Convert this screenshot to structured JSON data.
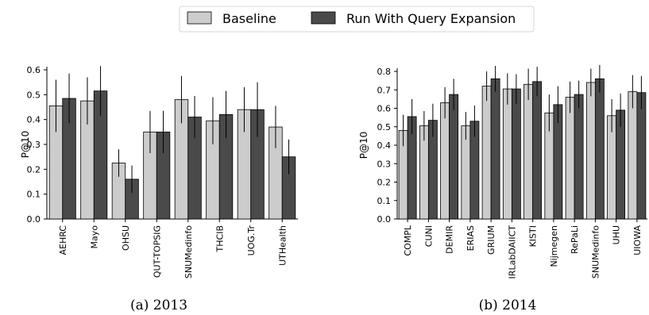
{
  "legend": {
    "baseline_color": "#cccccc",
    "expansion_color": "#4a4a4a"
  },
  "chart_data": [
    {
      "type": "bar",
      "caption": "(a) 2013",
      "ylabel": "P@10",
      "ylim": [
        0,
        0.6
      ],
      "yticks": [
        "0.0",
        "0.1",
        "0.2",
        "0.3",
        "0.4",
        "0.5",
        "0.6"
      ],
      "categories": [
        "AEHRC",
        "Mayo",
        "OHSU",
        "QUT-TOPSIG",
        "SNUMedinfo",
        "THCIB",
        "UOG.Tr",
        "UTHealth"
      ],
      "series": [
        {
          "name": "Baseline",
          "values": [
            0.455,
            0.475,
            0.225,
            0.35,
            0.48,
            0.395,
            0.44,
            0.37
          ],
          "err": [
            0.105,
            0.095,
            0.055,
            0.085,
            0.095,
            0.095,
            0.09,
            0.085
          ]
        },
        {
          "name": "Run With Query Expansion",
          "values": [
            0.485,
            0.515,
            0.16,
            0.35,
            0.41,
            0.42,
            0.44,
            0.25
          ],
          "err": [
            0.1,
            0.1,
            0.055,
            0.085,
            0.085,
            0.095,
            0.11,
            0.07
          ]
        }
      ]
    },
    {
      "type": "bar",
      "caption": "(b) 2014",
      "ylabel": "P@10",
      "ylim": [
        0,
        0.8
      ],
      "yticks": [
        "0.0",
        "0.1",
        "0.2",
        "0.3",
        "0.4",
        "0.5",
        "0.6",
        "0.7",
        "0.8"
      ],
      "categories": [
        "COMPL",
        "CUNI",
        "DEMIR",
        "ERIAS",
        "GRIUM",
        "IRLabDAIICT",
        "KISTI",
        "Nijmegen",
        "RePaLi",
        "SNUMedinfo",
        "UHU",
        "UIOWA"
      ],
      "series": [
        {
          "name": "Baseline",
          "values": [
            0.48,
            0.505,
            0.63,
            0.505,
            0.72,
            0.705,
            0.73,
            0.575,
            0.66,
            0.74,
            0.56,
            0.69
          ],
          "err": [
            0.085,
            0.08,
            0.085,
            0.075,
            0.08,
            0.085,
            0.085,
            0.1,
            0.085,
            0.075,
            0.09,
            0.09
          ]
        },
        {
          "name": "Run With Query Expansion",
          "values": [
            0.555,
            0.535,
            0.675,
            0.53,
            0.76,
            0.705,
            0.745,
            0.62,
            0.675,
            0.76,
            0.59,
            0.685
          ],
          "err": [
            0.095,
            0.09,
            0.085,
            0.085,
            0.07,
            0.08,
            0.08,
            0.1,
            0.075,
            0.075,
            0.09,
            0.09
          ]
        }
      ]
    }
  ]
}
